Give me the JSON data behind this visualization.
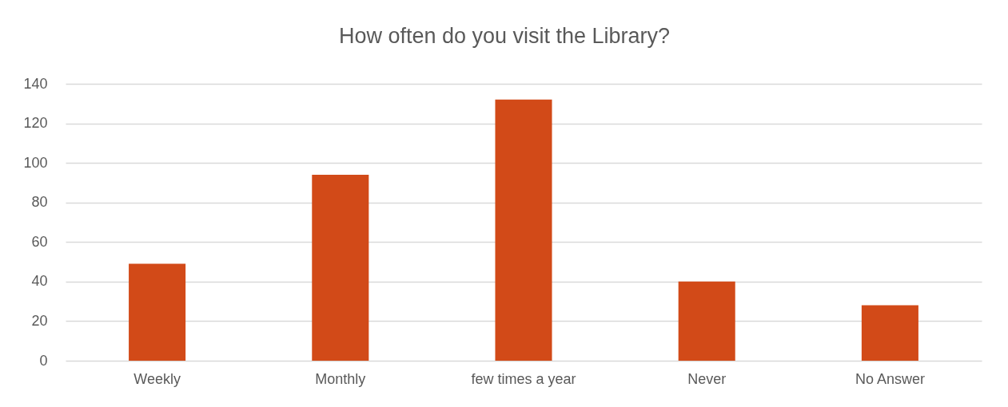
{
  "chart_data": {
    "type": "bar",
    "title": "How often do you visit the Library?",
    "categories": [
      "Weekly",
      "Monthly",
      "few times a year",
      "Never",
      "No Answer"
    ],
    "values": [
      49,
      94,
      132,
      40,
      28
    ],
    "color": "#d24a18",
    "ylim": [
      0,
      140
    ],
    "yticks": [
      0,
      20,
      40,
      60,
      80,
      100,
      120,
      140
    ],
    "grid": "y"
  }
}
